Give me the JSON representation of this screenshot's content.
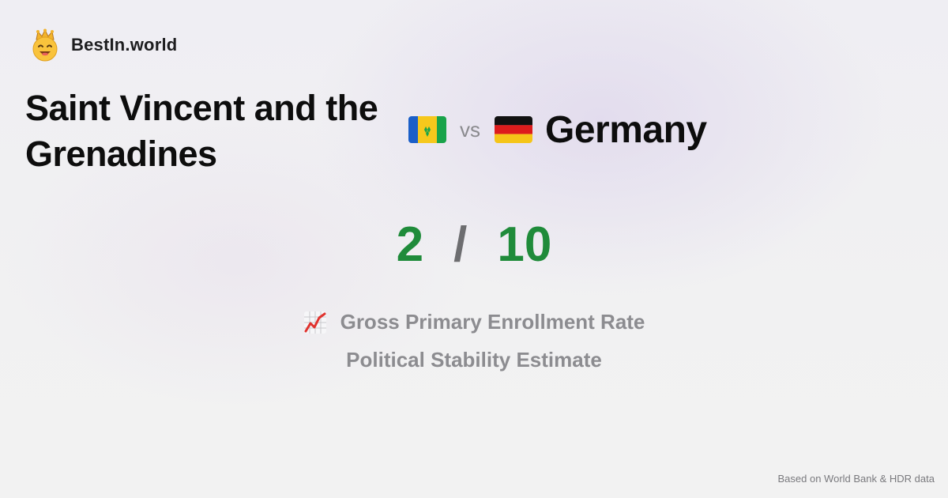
{
  "brand": {
    "name": "BestIn.world",
    "icon": "crowned-smiley-icon"
  },
  "comparison": {
    "country_a": "Saint Vincent and the Grenadines",
    "country_a_flag": "flag-saint-vincent-and-the-grenadines-icon",
    "vs_label": "vs",
    "country_b": "Germany",
    "country_b_flag": "flag-germany-icon"
  },
  "score": {
    "a": "2",
    "separator": "/",
    "b": "10",
    "color": "#1f8b3a"
  },
  "metrics": [
    {
      "label": "Gross Primary Enrollment Rate",
      "icon": "chart-increasing-icon"
    },
    {
      "label": "Political Stability Estimate"
    }
  ],
  "footer": {
    "source": "Based on World Bank & HDR data"
  }
}
